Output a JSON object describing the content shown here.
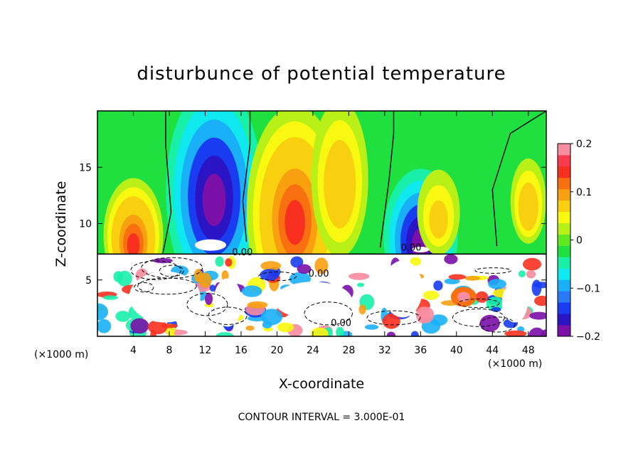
{
  "chart_data": {
    "type": "heatmap",
    "title": "disturbunce of potential temperature",
    "xlabel": "X-coordinate",
    "ylabel": "Z-coordinate",
    "x_unit": "(×1000 m)",
    "footer": "CONTOUR INTERVAL = 3.000E-01",
    "xlim": [
      0,
      50
    ],
    "ylim": [
      0,
      20
    ],
    "x_ticks": [
      4,
      8,
      12,
      16,
      20,
      24,
      28,
      32,
      36,
      40,
      44,
      48
    ],
    "y_ticks": [
      5,
      10,
      15
    ],
    "colorbar": {
      "range": [
        -0.2,
        0.2
      ],
      "tick_values": [
        0.2,
        0.1,
        0,
        -0.1,
        -0.2
      ],
      "tick_labels": [
        "0.2",
        "0.1",
        "0",
        "−0.1",
        "−0.2"
      ],
      "colors": [
        "#7a10a8",
        "#2a14c4",
        "#1a3cf0",
        "#2a7af8",
        "#1ab0f8",
        "#10e8f0",
        "#18f0a8",
        "#20e040",
        "#60e820",
        "#b8f018",
        "#f8f810",
        "#f8d010",
        "#f8a010",
        "#f87010",
        "#f83020",
        "#f83c50",
        "#f88ca0"
      ]
    },
    "contour_labels": [
      "0.00",
      "0.00",
      "0.00",
      "0.00"
    ],
    "features": [
      {
        "kind": "min",
        "x": 13,
        "z": 13,
        "value": -0.2
      },
      {
        "kind": "max",
        "x": 22,
        "z": 11,
        "value": 0.15
      },
      {
        "kind": "min",
        "x": 36,
        "z": 9,
        "value": -0.2
      },
      {
        "kind": "max",
        "x": 4,
        "z": 9,
        "value": 0.13
      },
      {
        "kind": "max",
        "x": 27,
        "z": 14,
        "value": 0.09
      },
      {
        "kind": "max",
        "x": 38,
        "z": 11,
        "value": 0.05
      },
      {
        "kind": "max",
        "x": 48,
        "z": 12,
        "value": 0.08
      }
    ]
  }
}
